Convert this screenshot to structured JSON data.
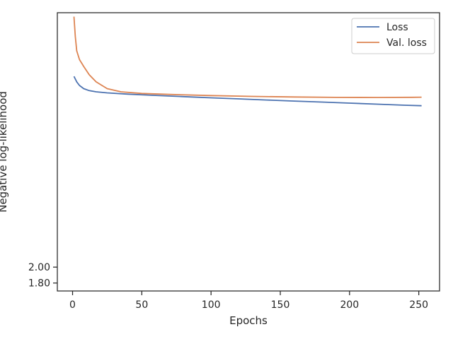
{
  "chart_data": {
    "type": "line",
    "title": "",
    "xlabel": "Epochs",
    "ylabel": "Negative log-likelihood",
    "xlim": [
      -11,
      265
    ],
    "ylim": [
      1.7,
      5.2
    ],
    "grid": false,
    "legend_placement": "top-right",
    "x_ticks": [
      0,
      50,
      100,
      150,
      200,
      250
    ],
    "x_tick_labels": [
      "0",
      "50",
      "100",
      "150",
      "200",
      "250"
    ],
    "y_ticks": [
      1.8,
      2.0
    ],
    "y_tick_labels": [
      "1.80",
      "2.00"
    ],
    "series": [
      {
        "name": "Loss",
        "color": "#4c72b0",
        "x": [
          1,
          3,
          5,
          8,
          12,
          17,
          25,
          40,
          60,
          80,
          100,
          120,
          140,
          160,
          180,
          200,
          220,
          240,
          252
        ],
        "y": [
          4.4,
          4.33,
          4.285,
          4.245,
          4.22,
          4.205,
          4.192,
          4.176,
          4.16,
          4.145,
          4.13,
          4.116,
          4.102,
          4.089,
          4.076,
          4.063,
          4.05,
          4.036,
          4.03
        ]
      },
      {
        "name": "Val. loss",
        "color": "#dd8452",
        "x": [
          1,
          2,
          3,
          5,
          8,
          12,
          17,
          25,
          35,
          50,
          70,
          100,
          130,
          160,
          190,
          220,
          245,
          252
        ],
        "y": [
          5.15,
          4.9,
          4.72,
          4.61,
          4.525,
          4.42,
          4.33,
          4.245,
          4.205,
          4.185,
          4.172,
          4.158,
          4.147,
          4.14,
          4.135,
          4.134,
          4.136,
          4.138
        ]
      }
    ]
  }
}
